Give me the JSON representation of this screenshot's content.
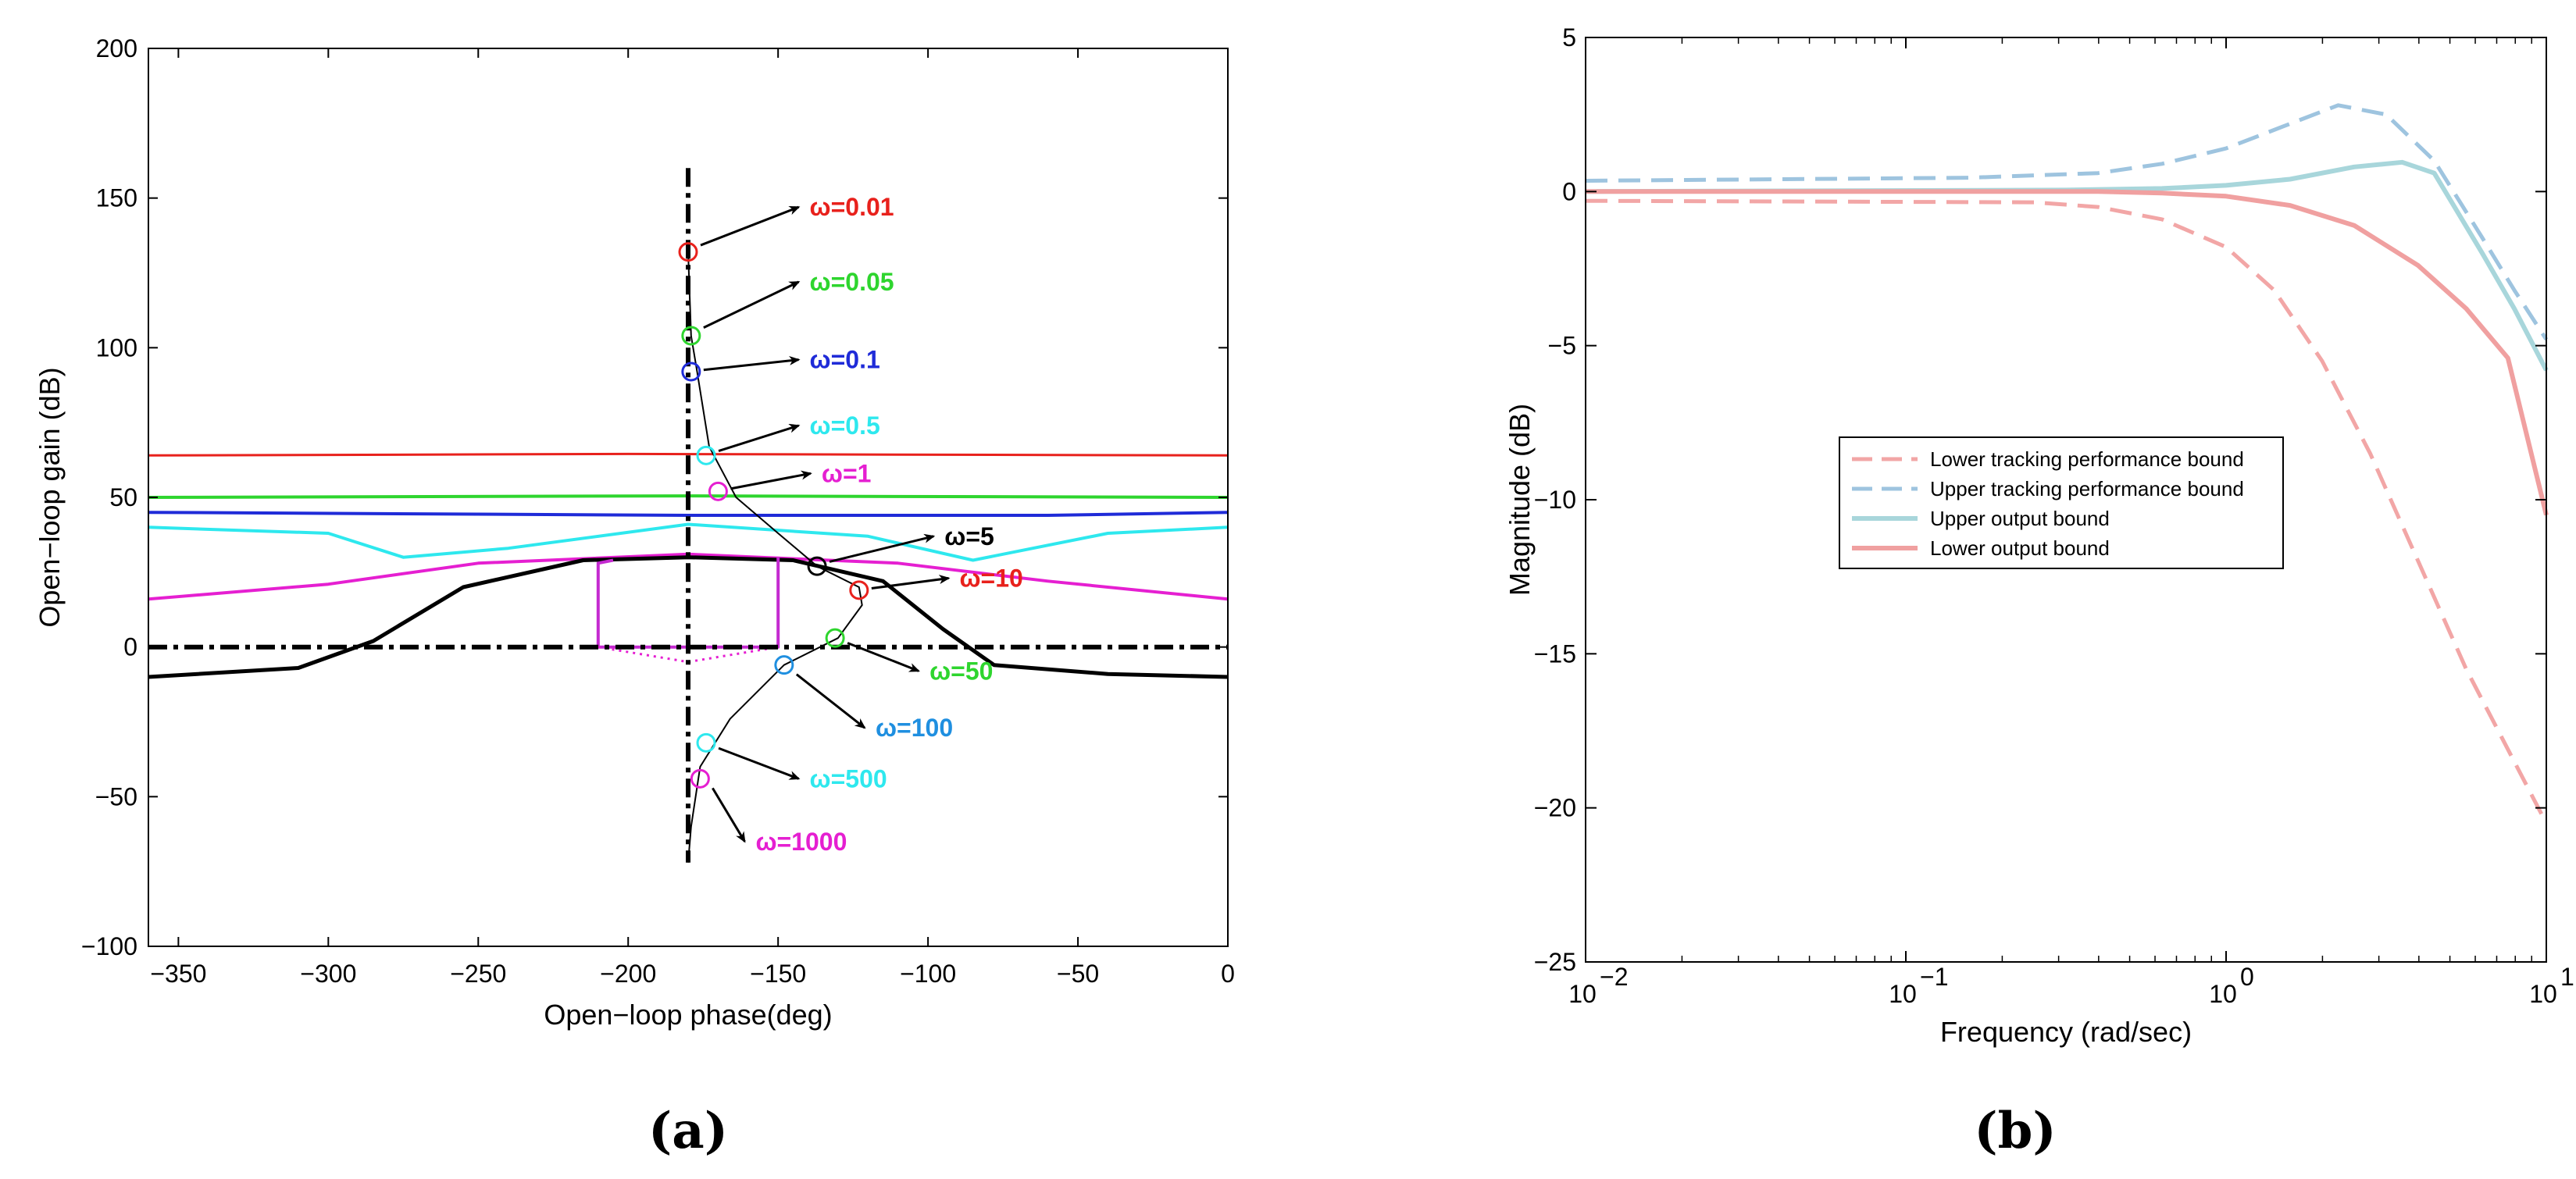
{
  "chart_data": [
    {
      "id": "a",
      "type": "line",
      "panel_label": "(a)",
      "xlabel": "Open−loop phase(deg)",
      "ylabel": "Open−loop gain (dB)",
      "xlim": [
        -360,
        0
      ],
      "ylim": [
        -100,
        200
      ],
      "xticks": [
        -350,
        -300,
        -250,
        -200,
        -150,
        -100,
        -50,
        0
      ],
      "xtick_labels": [
        "−350",
        "−300",
        "−250",
        "−200",
        "−150",
        "−100",
        "−50",
        "0"
      ],
      "yticks": [
        -100,
        -50,
        0,
        50,
        100,
        150,
        200
      ],
      "ytick_labels": [
        "−100",
        "−50",
        "0",
        "50",
        "100",
        "150",
        "200"
      ],
      "grid": false,
      "series": [
        {
          "name": "bound w=0.01",
          "color": "#e8211c",
          "width": 3,
          "points": [
            [
              -360,
              64
            ],
            [
              -200,
              64.5
            ],
            [
              0,
              64
            ]
          ]
        },
        {
          "name": "bound w=0.05",
          "color": "#2ed52e",
          "width": 4,
          "points": [
            [
              -360,
              50
            ],
            [
              -180,
              50.5
            ],
            [
              0,
              50
            ]
          ]
        },
        {
          "name": "bound w=0.1",
          "color": "#1f2bd8",
          "width": 4,
          "points": [
            [
              -360,
              45
            ],
            [
              -180,
              44
            ],
            [
              -60,
              44
            ],
            [
              0,
              45
            ]
          ]
        },
        {
          "name": "bound w=0.5",
          "color": "#2ee8ee",
          "width": 4,
          "points": [
            [
              -360,
              40
            ],
            [
              -300,
              38
            ],
            [
              -275,
              30
            ],
            [
              -240,
              33
            ],
            [
              -180,
              41
            ],
            [
              -120,
              37
            ],
            [
              -85,
              29
            ],
            [
              -40,
              38
            ],
            [
              0,
              40
            ]
          ]
        },
        {
          "name": "bound w=1",
          "color": "#e51fd1",
          "width": 4,
          "points": [
            [
              -360,
              16
            ],
            [
              -300,
              21
            ],
            [
              -250,
              28
            ],
            [
              -180,
              31
            ],
            [
              -110,
              28
            ],
            [
              -60,
              22
            ],
            [
              0,
              16
            ]
          ]
        },
        {
          "name": "bound w=5",
          "color": "#000000",
          "width": 5,
          "points": [
            [
              -360,
              -10
            ],
            [
              -310,
              -7
            ],
            [
              -285,
              2
            ],
            [
              -255,
              20
            ],
            [
              -215,
              29
            ],
            [
              -180,
              30
            ],
            [
              -145,
              29
            ],
            [
              -115,
              22
            ],
            [
              -95,
              6
            ],
            [
              -78,
              -6
            ],
            [
              -40,
              -9
            ],
            [
              0,
              -10
            ]
          ]
        },
        {
          "name": "bound w=10 outline",
          "color": "#c42ad0",
          "width": 4,
          "points": [
            [
              -150,
              30
            ],
            [
              -150,
              0
            ],
            [
              -210,
              0
            ],
            [
              -210,
              28
            ],
            [
              -205,
              29
            ]
          ]
        },
        {
          "name": "bound w=10 lower",
          "color": "#e51fd1",
          "width": 3,
          "dash": "3,6",
          "points": [
            [
              -210,
              0
            ],
            [
              -180,
              -5
            ],
            [
              -150,
              0
            ]
          ]
        },
        {
          "name": "crossover",
          "color": "#000000",
          "width": 6,
          "dash": "24,8,6,8",
          "points": [
            [
              -360,
              0
            ],
            [
              0,
              0
            ]
          ]
        },
        {
          "name": "critical",
          "color": "#000000",
          "width": 6,
          "dash": "24,8,6,8",
          "points": [
            [
              -180,
              160
            ],
            [
              -180,
              -72
            ]
          ]
        },
        {
          "name": "nominal loop L0",
          "color": "#000000",
          "width": 2,
          "points": [
            [
              -180,
              132
            ],
            [
              -179,
              104
            ],
            [
              -177,
              92
            ],
            [
              -173,
              67
            ],
            [
              -164,
              50
            ],
            [
              -150,
              38
            ],
            [
              -137,
              27
            ],
            [
              -123,
              20
            ],
            [
              -122,
              14
            ],
            [
              -130,
              3
            ],
            [
              -148,
              -6
            ],
            [
              -166,
              -24
            ],
            [
              -176,
              -40
            ],
            [
              -179,
              -60
            ],
            [
              -180,
              -72
            ]
          ]
        }
      ],
      "markers": [
        {
          "label": "ω=0.01",
          "color": "#e8211c",
          "x": -180,
          "y": 132,
          "text_x": -140,
          "text_y": 147
        },
        {
          "label": "ω=0.05",
          "color": "#2ed52e",
          "x": -179,
          "y": 104,
          "text_x": -140,
          "text_y": 122
        },
        {
          "label": "ω=0.1",
          "color": "#1f2bd8",
          "x": -179,
          "y": 92,
          "text_x": -140,
          "text_y": 96
        },
        {
          "label": "ω=0.5",
          "color": "#2ee8ee",
          "x": -174,
          "y": 64,
          "text_x": -140,
          "text_y": 74
        },
        {
          "label": "ω=1",
          "color": "#e51fd1",
          "x": -170,
          "y": 52,
          "text_x": -136,
          "text_y": 58
        },
        {
          "label": "ω=5",
          "color": "#000000",
          "x": -137,
          "y": 27,
          "text_x": -95,
          "text_y": 37
        },
        {
          "label": "ω=10",
          "color": "#e8211c",
          "x": -123,
          "y": 19,
          "text_x": -90,
          "text_y": 23
        },
        {
          "label": "ω=50",
          "color": "#2ed52e",
          "x": -131,
          "y": 3,
          "text_x": -100,
          "text_y": -8
        },
        {
          "label": "ω=100",
          "color": "#1f8fe0",
          "x": -148,
          "y": -6,
          "text_x": -118,
          "text_y": -27
        },
        {
          "label": "ω=500",
          "color": "#2ee8ee",
          "x": -174,
          "y": -32,
          "text_x": -140,
          "text_y": -44
        },
        {
          "label": "ω=1000",
          "color": "#e51fd1",
          "x": -176,
          "y": -44,
          "text_x": -158,
          "text_y": -65
        }
      ]
    },
    {
      "id": "b",
      "type": "line",
      "panel_label": "(b)",
      "xlabel": "Frequency  (rad/sec)",
      "ylabel": "Magnitude (dB)",
      "xscale": "log",
      "xlim_log10": [
        -2,
        1
      ],
      "ylim": [
        -25,
        5
      ],
      "xticks_log10": [
        -2,
        -1,
        0,
        1
      ],
      "xtick_base": "10",
      "xtick_exponents": [
        "−2",
        "−1",
        "0",
        "1"
      ],
      "yticks": [
        -25,
        -20,
        -15,
        -10,
        -5,
        0,
        5
      ],
      "ytick_labels": [
        "−25",
        "−20",
        "−15",
        "−10",
        "−5",
        "0",
        "5"
      ],
      "grid": false,
      "legend_position": "center",
      "series": [
        {
          "name": "Lower tracking performance bound",
          "color": "#f2a6a6",
          "dash": "28,14",
          "width": 5,
          "points": [
            [
              -2,
              -0.3
            ],
            [
              -0.6,
              -0.35
            ],
            [
              -0.4,
              -0.5
            ],
            [
              -0.2,
              -0.9
            ],
            [
              0,
              -1.8
            ],
            [
              0.15,
              -3.2
            ],
            [
              0.3,
              -5.5
            ],
            [
              0.45,
              -8.5
            ],
            [
              0.6,
              -12
            ],
            [
              0.75,
              -15.5
            ],
            [
              0.9,
              -18.5
            ],
            [
              1,
              -20.5
            ]
          ]
        },
        {
          "name": "Upper tracking performance bound",
          "color": "#9ec4df",
          "dash": "28,14",
          "width": 5,
          "points": [
            [
              -2,
              0.35
            ],
            [
              -0.8,
              0.45
            ],
            [
              -0.4,
              0.6
            ],
            [
              -0.2,
              0.9
            ],
            [
              0,
              1.4
            ],
            [
              0.2,
              2.2
            ],
            [
              0.35,
              2.8
            ],
            [
              0.5,
              2.5
            ],
            [
              0.65,
              1.0
            ],
            [
              0.8,
              -1.5
            ],
            [
              0.9,
              -3.2
            ],
            [
              1,
              -4.8
            ]
          ]
        },
        {
          "name": "Upper output bound",
          "color": "#a8d6db",
          "width": 6,
          "points": [
            [
              -2,
              0
            ],
            [
              -0.5,
              0.05
            ],
            [
              -0.2,
              0.1
            ],
            [
              0,
              0.2
            ],
            [
              0.2,
              0.4
            ],
            [
              0.4,
              0.8
            ],
            [
              0.55,
              0.95
            ],
            [
              0.65,
              0.6
            ],
            [
              0.8,
              -2
            ],
            [
              0.9,
              -3.8
            ],
            [
              1,
              -5.8
            ]
          ]
        },
        {
          "name": "Lower output bound",
          "color": "#f0a0a0",
          "width": 6,
          "points": [
            [
              -2,
              0
            ],
            [
              -0.4,
              0
            ],
            [
              -0.2,
              -0.05
            ],
            [
              0,
              -0.15
            ],
            [
              0.2,
              -0.45
            ],
            [
              0.4,
              -1.1
            ],
            [
              0.6,
              -2.4
            ],
            [
              0.75,
              -3.8
            ],
            [
              0.88,
              -5.4
            ],
            [
              1,
              -10.5
            ]
          ]
        }
      ]
    }
  ]
}
